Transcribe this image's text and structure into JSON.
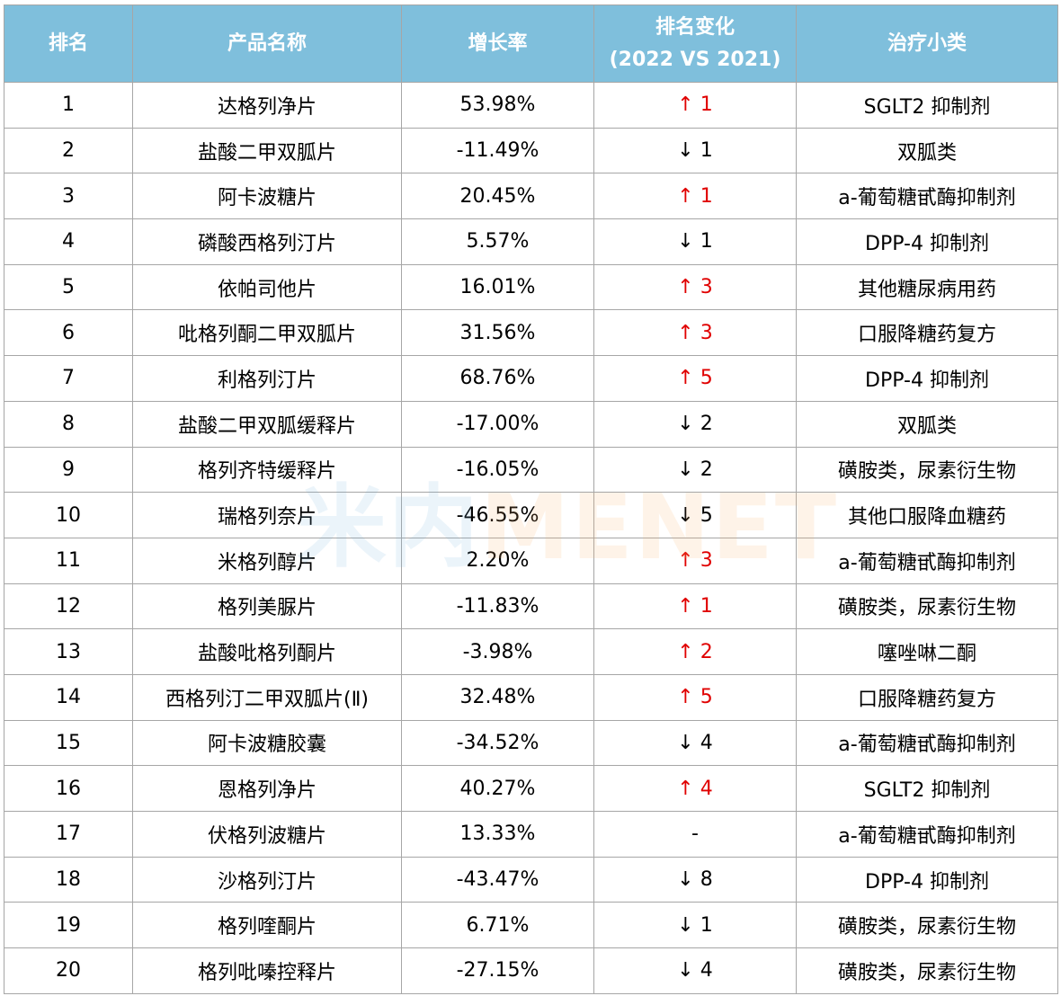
{
  "table": {
    "headers": {
      "rank": "排名",
      "name": "产品名称",
      "growth": "增长率",
      "change_line1": "排名变化",
      "change_line2": "(2022 VS 2021)",
      "category": "治疗小类"
    },
    "rows": [
      {
        "rank": "1",
        "name": "达格列净片",
        "growth": "53.98%",
        "change": "↑ 1",
        "dir": "up",
        "category": "SGLT2 抑制剂"
      },
      {
        "rank": "2",
        "name": "盐酸二甲双胍片",
        "growth": "-11.49%",
        "change": "↓ 1",
        "dir": "down",
        "category": "双胍类"
      },
      {
        "rank": "3",
        "name": "阿卡波糖片",
        "growth": "20.45%",
        "change": "↑ 1",
        "dir": "up",
        "category": "a-葡萄糖甙酶抑制剂"
      },
      {
        "rank": "4",
        "name": "磷酸西格列汀片",
        "growth": "5.57%",
        "change": "↓ 1",
        "dir": "down",
        "category": "DPP-4 抑制剂"
      },
      {
        "rank": "5",
        "name": "依帕司他片",
        "growth": "16.01%",
        "change": "↑ 3",
        "dir": "up",
        "category": "其他糖尿病用药"
      },
      {
        "rank": "6",
        "name": "吡格列酮二甲双胍片",
        "growth": "31.56%",
        "change": "↑ 3",
        "dir": "up",
        "category": "口服降糖药复方"
      },
      {
        "rank": "7",
        "name": "利格列汀片",
        "growth": "68.76%",
        "change": "↑ 5",
        "dir": "up",
        "category": "DPP-4 抑制剂"
      },
      {
        "rank": "8",
        "name": "盐酸二甲双胍缓释片",
        "growth": "-17.00%",
        "change": "↓ 2",
        "dir": "down",
        "category": "双胍类"
      },
      {
        "rank": "9",
        "name": "格列齐特缓释片",
        "growth": "-16.05%",
        "change": "↓ 2",
        "dir": "down",
        "category": "磺胺类，尿素衍生物"
      },
      {
        "rank": "10",
        "name": "瑞格列奈片",
        "growth": "-46.55%",
        "change": "↓ 5",
        "dir": "down",
        "category": "其他口服降血糖药"
      },
      {
        "rank": "11",
        "name": "米格列醇片",
        "growth": "2.20%",
        "change": "↑ 3",
        "dir": "up",
        "category": "a-葡萄糖甙酶抑制剂"
      },
      {
        "rank": "12",
        "name": "格列美脲片",
        "growth": "-11.83%",
        "change": "↑ 1",
        "dir": "up",
        "category": "磺胺类，尿素衍生物"
      },
      {
        "rank": "13",
        "name": "盐酸吡格列酮片",
        "growth": "-3.98%",
        "change": "↑ 2",
        "dir": "up",
        "category": "噻唑啉二酮"
      },
      {
        "rank": "14",
        "name": "西格列汀二甲双胍片(Ⅱ)",
        "growth": "32.48%",
        "change": "↑ 5",
        "dir": "up",
        "category": "口服降糖药复方"
      },
      {
        "rank": "15",
        "name": "阿卡波糖胶囊",
        "growth": "-34.52%",
        "change": "↓ 4",
        "dir": "down",
        "category": "a-葡萄糖甙酶抑制剂"
      },
      {
        "rank": "16",
        "name": "恩格列净片",
        "growth": "40.27%",
        "change": "↑ 4",
        "dir": "up",
        "category": "SGLT2 抑制剂"
      },
      {
        "rank": "17",
        "name": "伏格列波糖片",
        "growth": "13.33%",
        "change": "-",
        "dir": "none",
        "category": "a-葡萄糖甙酶抑制剂"
      },
      {
        "rank": "18",
        "name": "沙格列汀片",
        "growth": "-43.47%",
        "change": "↓ 8",
        "dir": "down",
        "category": "DPP-4 抑制剂"
      },
      {
        "rank": "19",
        "name": "格列喹酮片",
        "growth": "6.71%",
        "change": "↓ 1",
        "dir": "down",
        "category": "磺胺类，尿素衍生物"
      },
      {
        "rank": "20",
        "name": "格列吡嗪控释片",
        "growth": "-27.15%",
        "change": "↓ 4",
        "dir": "down",
        "category": "磺胺类，尿素衍生物"
      }
    ]
  },
  "watermark": {
    "cn": "米内",
    "en": "MENET"
  },
  "colors": {
    "header_bg": "#7fbfdc",
    "header_text": "#ffffff",
    "up_arrow": "#e00000",
    "down_arrow": "#000000",
    "border": "#a6a6a6"
  }
}
